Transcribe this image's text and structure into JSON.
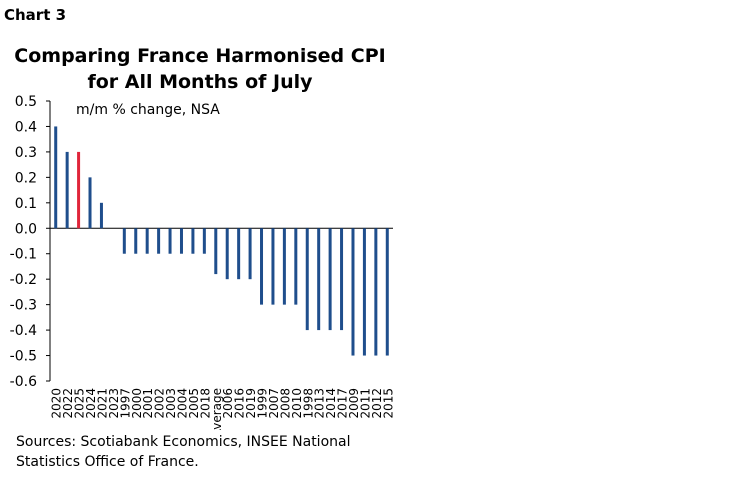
{
  "header": {
    "chart_number": "Chart 3"
  },
  "footer": {
    "source_line1": "Sources: Scotiabank Economics, INSEE National",
    "source_line2": "Statistics Office of France."
  },
  "colors": {
    "bar": "#1f4e8c",
    "highlight": "#e0253a",
    "axis": "#000000"
  },
  "chart_data": {
    "type": "bar",
    "title_line1": "Comparing France Harmonised CPI",
    "title_line2": "for All Months of July",
    "subtitle": "m/m % change, NSA",
    "ylim": [
      -0.6,
      0.5
    ],
    "yticks": [
      "0.5",
      "0.4",
      "0.3",
      "0.2",
      "0.1",
      "0.0",
      "-0.1",
      "-0.2",
      "-0.3",
      "-0.4",
      "-0.5",
      "-0.6"
    ],
    "highlight_category": "2025",
    "categories": [
      "2020",
      "2022",
      "2025",
      "2024",
      "2021",
      "2023",
      "1997",
      "2000",
      "2001",
      "2002",
      "2003",
      "2004",
      "2005",
      "2018",
      "Average",
      "2006",
      "2016",
      "2019",
      "1999",
      "2007",
      "2008",
      "2010",
      "1998",
      "2013",
      "2014",
      "2017",
      "2009",
      "2011",
      "2012",
      "2015"
    ],
    "values": [
      0.4,
      0.3,
      0.3,
      0.2,
      0.1,
      0.0,
      -0.1,
      -0.1,
      -0.1,
      -0.1,
      -0.1,
      -0.1,
      -0.1,
      -0.1,
      -0.18,
      -0.2,
      -0.2,
      -0.2,
      -0.3,
      -0.3,
      -0.3,
      -0.3,
      -0.4,
      -0.4,
      -0.4,
      -0.4,
      -0.5,
      -0.5,
      -0.5,
      -0.5
    ]
  }
}
